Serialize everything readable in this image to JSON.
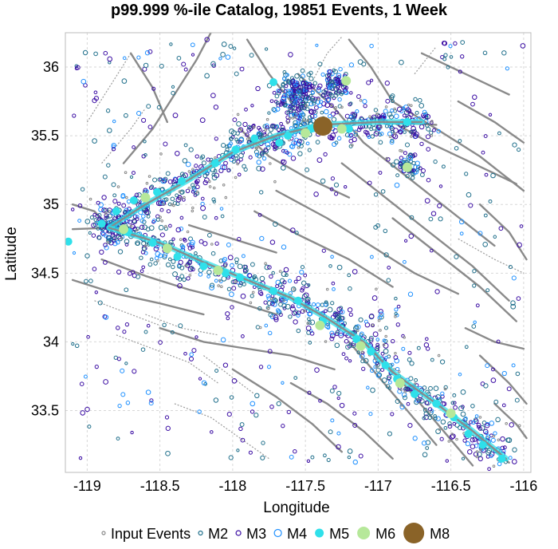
{
  "chart_data": {
    "type": "scatter",
    "title": "p99.999 %-ile Catalog, 19851 Events, 1 Week",
    "xlabel": "Longitude",
    "ylabel": "Latitude",
    "xlim": [
      -119.15,
      -115.95
    ],
    "ylim": [
      33.05,
      36.25
    ],
    "xticks": [
      -119,
      -118.5,
      -118,
      -117.5,
      -117,
      -116.5,
      -116
    ],
    "yticks": [
      33.5,
      34,
      34.5,
      35,
      35.5,
      36
    ],
    "grid": true,
    "legend_position": "bottom",
    "basemap": "grey fault traces",
    "legend": [
      {
        "label": "Input Events",
        "color": "#8a8a8a",
        "marker": "open-circle"
      },
      {
        "label": "M2",
        "color": "#1f6f8b",
        "marker": "open-circle"
      },
      {
        "label": "M3",
        "color": "#3a0ca3",
        "marker": "open-circle"
      },
      {
        "label": "M4",
        "color": "#1e90ff",
        "marker": "open-circle"
      },
      {
        "label": "M5",
        "color": "#2fe0ea",
        "marker": "filled-circle"
      },
      {
        "label": "M6",
        "color": "#b6e89a",
        "marker": "filled-circle"
      },
      {
        "label": "M8",
        "color": "#8a6328",
        "marker": "filled-circle"
      }
    ],
    "series": [
      {
        "name": "M5",
        "color": "#2fe0ea",
        "points": [
          [
            -119.13,
            34.73
          ],
          [
            -118.9,
            34.86
          ],
          [
            -118.8,
            34.95
          ],
          [
            -118.68,
            35.03
          ],
          [
            -118.52,
            35.09
          ],
          [
            -118.35,
            35.17
          ],
          [
            -118.12,
            35.3
          ],
          [
            -117.98,
            35.4
          ],
          [
            -117.72,
            35.89
          ],
          [
            -117.85,
            35.48
          ],
          [
            -117.62,
            35.5
          ],
          [
            -117.2,
            35.55
          ],
          [
            -116.8,
            35.6
          ],
          [
            -118.72,
            34.8
          ],
          [
            -118.55,
            34.72
          ],
          [
            -118.38,
            34.62
          ],
          [
            -118.2,
            34.55
          ],
          [
            -117.95,
            34.47
          ],
          [
            -117.72,
            34.37
          ],
          [
            -117.55,
            34.3
          ],
          [
            -117.38,
            34.15
          ],
          [
            -117.15,
            34.02
          ],
          [
            -117.05,
            33.93
          ],
          [
            -116.95,
            33.83
          ],
          [
            -116.87,
            33.73
          ],
          [
            -116.75,
            33.62
          ],
          [
            -116.6,
            33.55
          ],
          [
            -116.48,
            33.45
          ],
          [
            -116.38,
            33.33
          ],
          [
            -116.28,
            33.25
          ],
          [
            -116.15,
            33.15
          ],
          [
            -118.05,
            34.5
          ],
          [
            -117.68,
            35.45
          ],
          [
            -117.46,
            35.55
          ]
        ]
      },
      {
        "name": "M6",
        "color": "#b6e89a",
        "points": [
          [
            -118.75,
            34.82
          ],
          [
            -118.45,
            34.68
          ],
          [
            -118.1,
            34.52
          ],
          [
            -117.4,
            34.12
          ],
          [
            -117.12,
            33.97
          ],
          [
            -116.85,
            33.7
          ],
          [
            -116.5,
            33.48
          ],
          [
            -117.5,
            35.52
          ],
          [
            -117.25,
            35.55
          ],
          [
            -117.22,
            35.9
          ],
          [
            -116.8,
            35.27
          ],
          [
            -118.6,
            35.05
          ]
        ]
      },
      {
        "name": "M8",
        "color": "#8a6328",
        "points": [
          [
            -117.38,
            35.57
          ]
        ]
      }
    ]
  }
}
